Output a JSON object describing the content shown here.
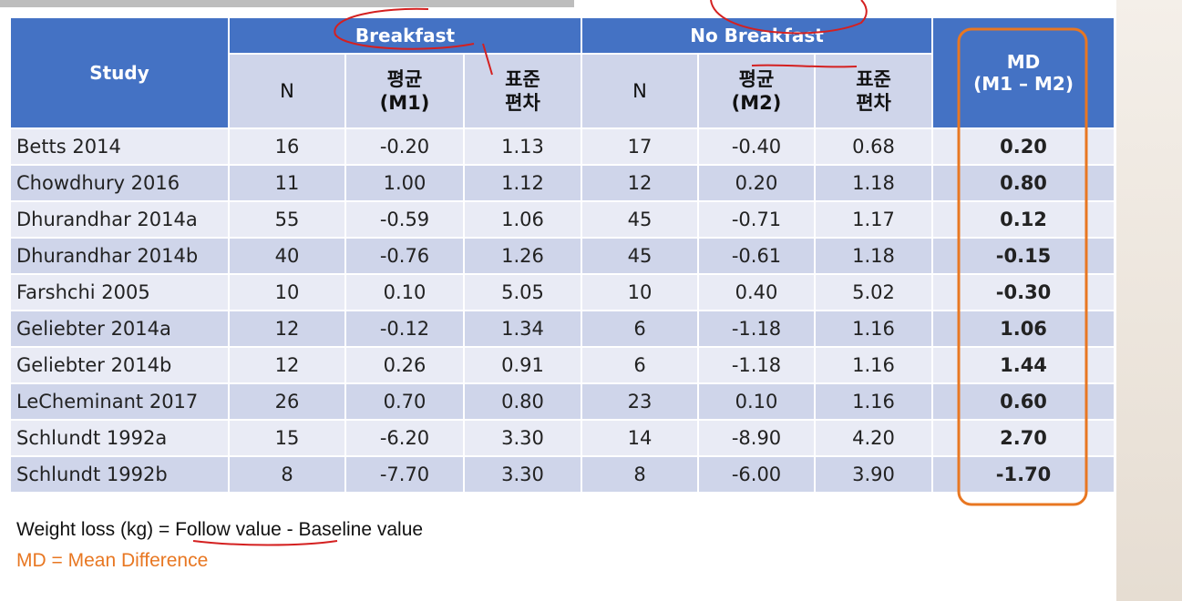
{
  "table": {
    "group_headers": [
      "Study",
      "Breakfast",
      "No Breakfast",
      "MD\n(M1 – M2)"
    ],
    "sub_headers": [
      "N",
      "평균\n(M1)",
      "표준\n편차",
      "N",
      "평균\n(M2)",
      "표준\n편차"
    ],
    "rows": [
      [
        "Betts 2014",
        "16",
        "-0.20",
        "1.13",
        "17",
        "-0.40",
        "0.68",
        "0.20"
      ],
      [
        "Chowdhury 2016",
        "11",
        "1.00",
        "1.12",
        "12",
        "0.20",
        "1.18",
        "0.80"
      ],
      [
        "Dhurandhar 2014a",
        "55",
        "-0.59",
        "1.06",
        "45",
        "-0.71",
        "1.17",
        "0.12"
      ],
      [
        "Dhurandhar 2014b",
        "40",
        "-0.76",
        "1.26",
        "45",
        "-0.61",
        "1.18",
        "-0.15"
      ],
      [
        "Farshchi 2005",
        "10",
        "0.10",
        "5.05",
        "10",
        "0.40",
        "5.02",
        "-0.30"
      ],
      [
        "Geliebter 2014a",
        "12",
        "-0.12",
        "1.34",
        "6",
        "-1.18",
        "1.16",
        "1.06"
      ],
      [
        "Geliebter 2014b",
        "12",
        "0.26",
        "0.91",
        "6",
        "-1.18",
        "1.16",
        "1.44"
      ],
      [
        "LeCheminant 2017",
        "26",
        "0.70",
        "0.80",
        "23",
        "0.10",
        "1.16",
        "0.60"
      ],
      [
        "Schlundt 1992a",
        "15",
        "-6.20",
        "3.30",
        "14",
        "-8.90",
        "4.20",
        "2.70"
      ],
      [
        "Schlundt 1992b",
        "8",
        "-7.70",
        "3.30",
        "8",
        "-6.00",
        "3.90",
        "-1.70"
      ]
    ]
  },
  "notes": [
    "Weight loss (kg) = Follow value  -  Baseline value",
    "MD = Mean Difference"
  ]
}
